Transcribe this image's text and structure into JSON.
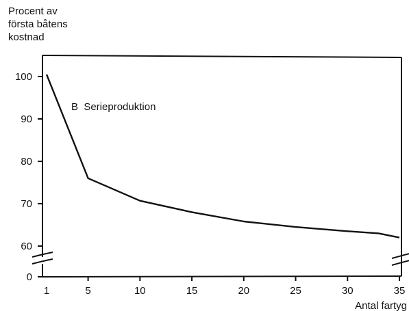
{
  "chart_data": {
    "type": "line",
    "ylabel": [
      "Procent av",
      "första båtens",
      "kostnad"
    ],
    "xlabel": "Antal fartyg",
    "annotation": "B  Serieproduktion",
    "x_ticks": [
      "1",
      "5",
      "10",
      "15",
      "20",
      "25",
      "30",
      "35"
    ],
    "y_ticks": [
      "60",
      "70",
      "80",
      "90",
      "100"
    ],
    "y_zero_label": "0",
    "xlim": [
      1,
      35
    ],
    "ylim": [
      60,
      104
    ],
    "axis_break": true,
    "grid": false,
    "series": [
      {
        "x": [
          1,
          5,
          10,
          15,
          20,
          25,
          30,
          33,
          35
        ],
        "y": [
          100.5,
          76,
          70.7,
          68,
          65.8,
          64.5,
          63.5,
          63,
          62
        ]
      }
    ]
  }
}
